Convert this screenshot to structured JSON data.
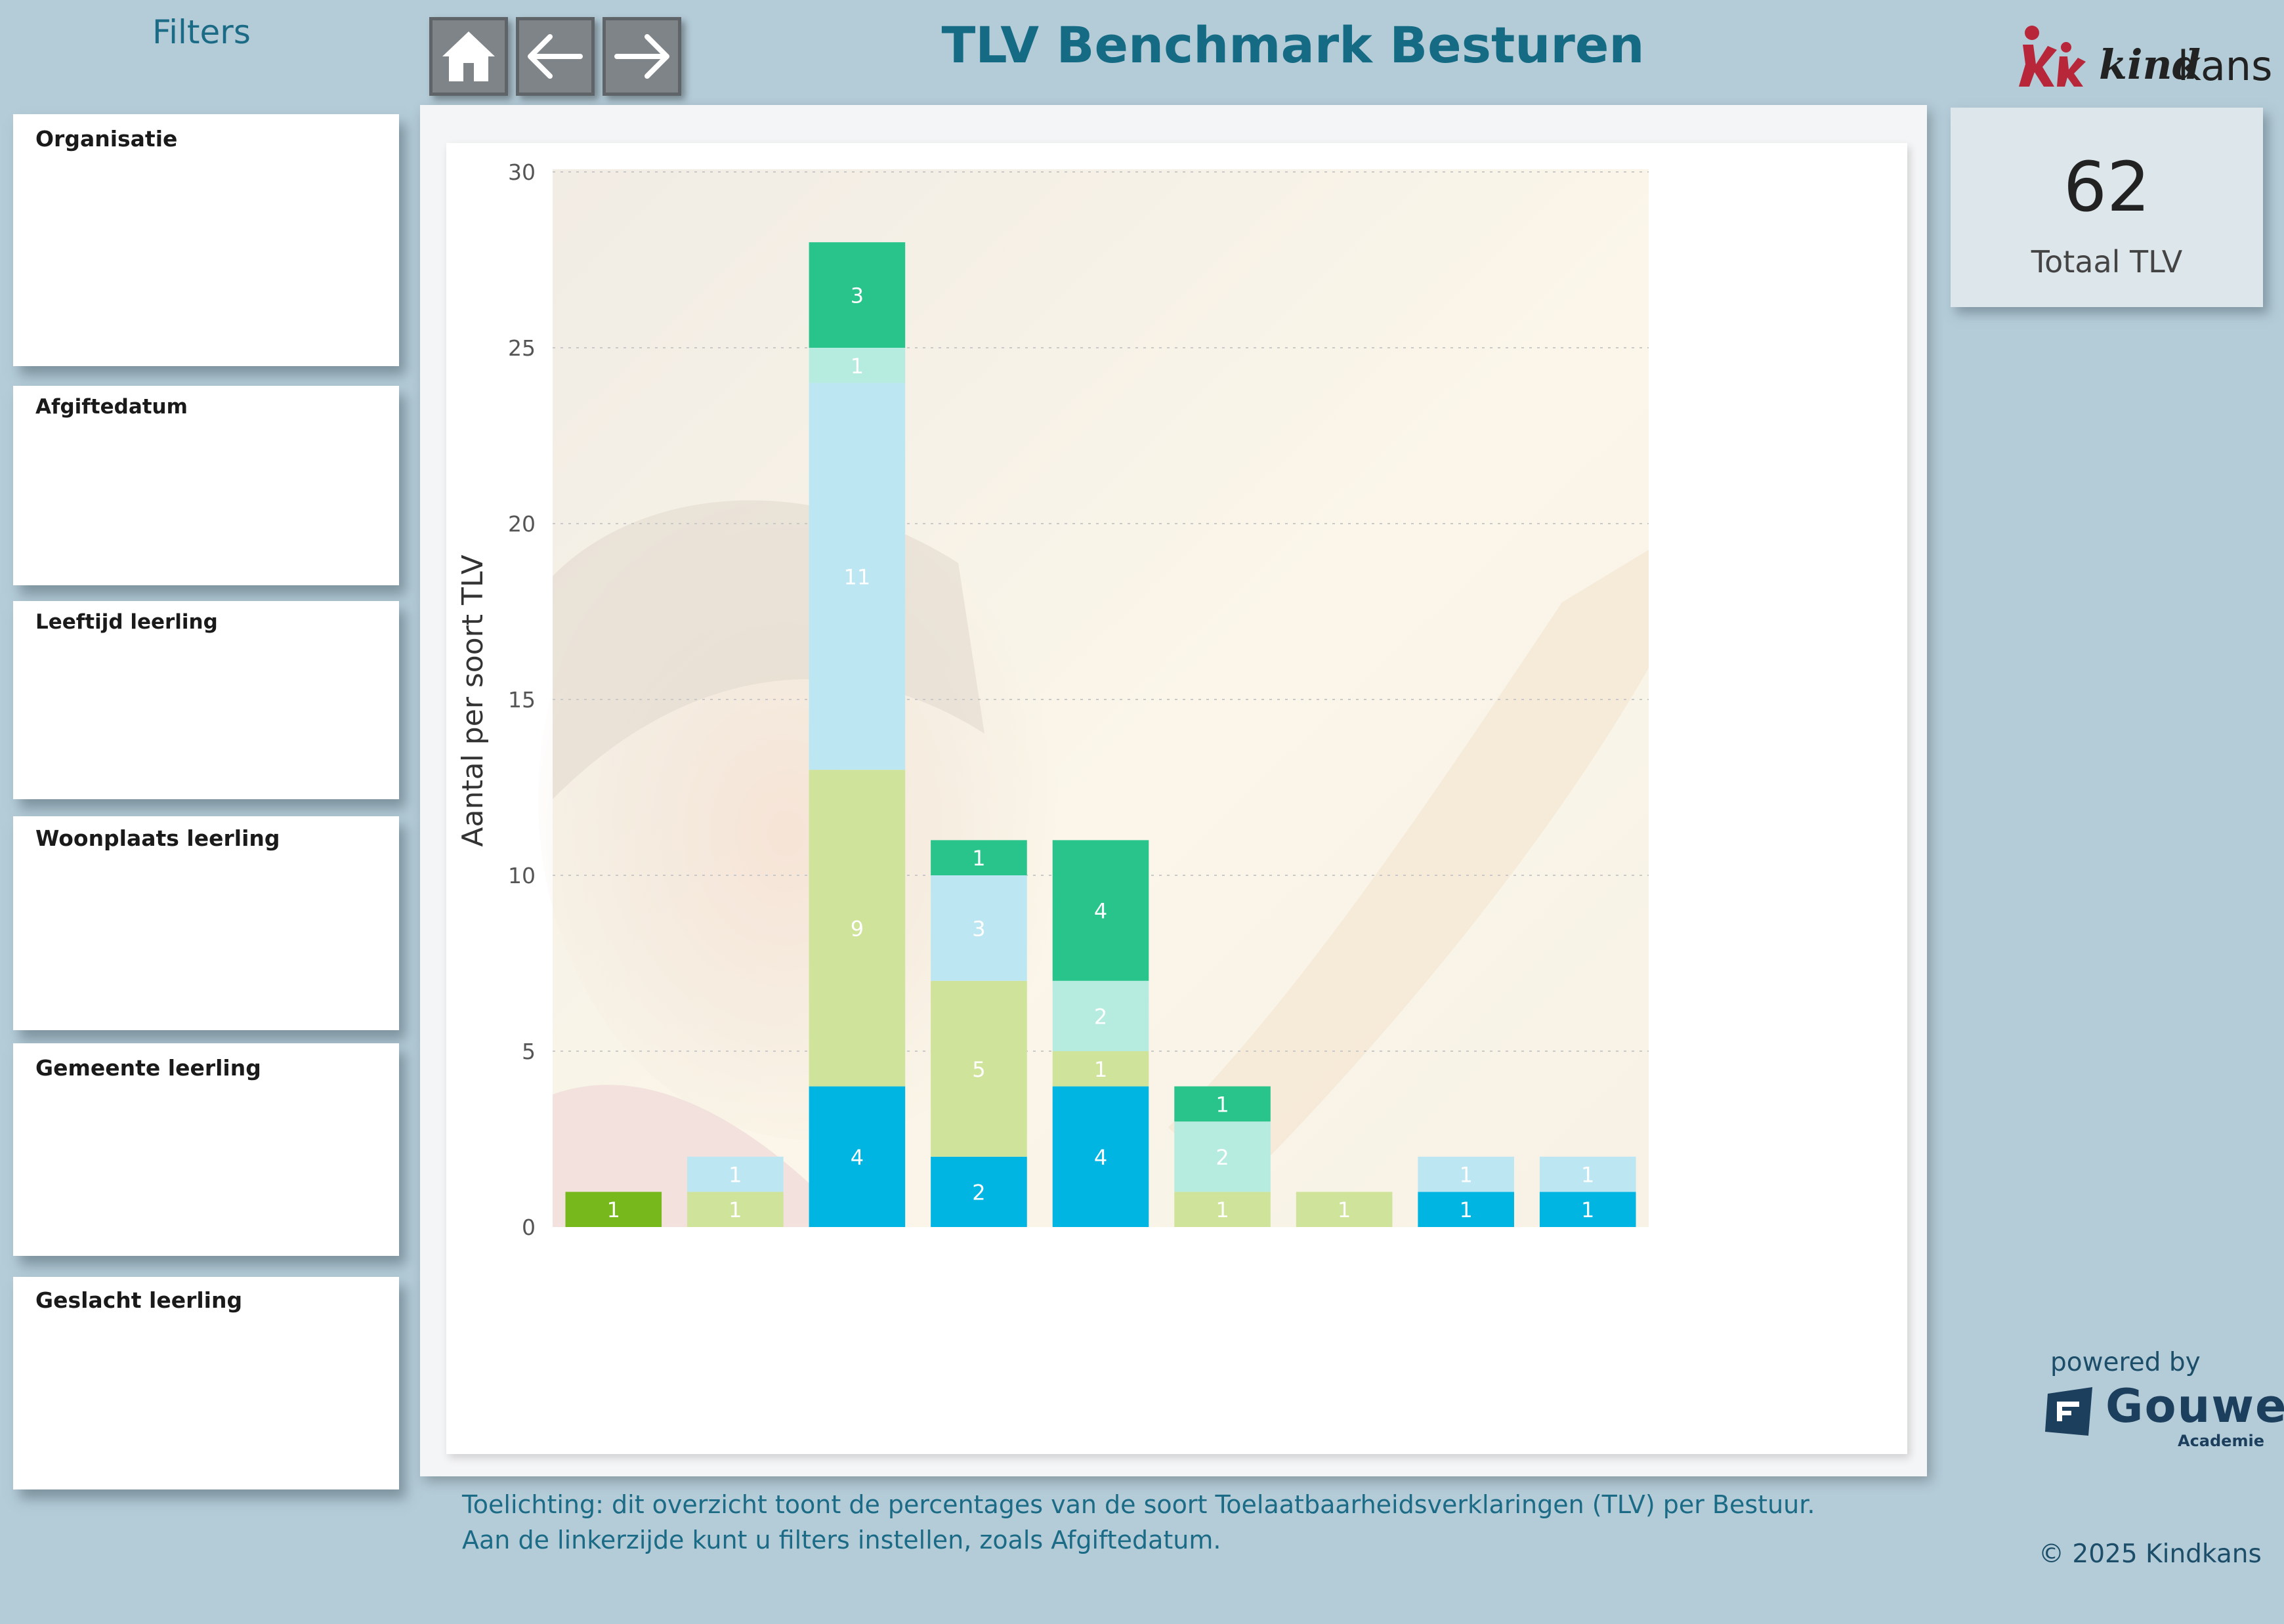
{
  "header": {
    "filters_title": "Filters",
    "page_title": "TLV Benchmark Besturen",
    "nav": {
      "home": "home-icon",
      "back": "arrow-left-icon",
      "forward": "arrow-right-icon"
    }
  },
  "logo": {
    "brand_kind": "kind",
    "brand_kans": "kans",
    "colors": {
      "figure": "#b8263a"
    }
  },
  "filters": [
    {
      "label": "Organisatie"
    },
    {
      "label": "Afgiftedatum"
    },
    {
      "label": "Leeftijd leerling"
    },
    {
      "label": "Woonplaats leerling"
    },
    {
      "label": "Gemeente leerling"
    },
    {
      "label": "Geslacht leerling"
    }
  ],
  "kpi": {
    "value": "62",
    "label": "Totaal TLV"
  },
  "chart_data": {
    "type": "bar",
    "stacked": true,
    "ylabel": "Aantal per soort TLV",
    "ylim": [
      0,
      30
    ],
    "yticks": [
      0,
      5,
      10,
      15,
      20,
      25,
      30
    ],
    "grid": true,
    "bars": [
      {
        "segments": [
          {
            "value": 1,
            "color": "#77b81c"
          }
        ]
      },
      {
        "segments": [
          {
            "value": 1,
            "color": "#cfe39a"
          },
          {
            "value": 1,
            "color": "#bde6f3"
          }
        ]
      },
      {
        "segments": [
          {
            "value": 4,
            "color": "#00b5e2"
          },
          {
            "value": 9,
            "color": "#cfe39a"
          },
          {
            "value": 11,
            "color": "#bde6f3"
          },
          {
            "value": 1,
            "color": "#b6ebdf"
          },
          {
            "value": 3,
            "color": "#28c48c"
          }
        ]
      },
      {
        "segments": [
          {
            "value": 2,
            "color": "#00b5e2"
          },
          {
            "value": 5,
            "color": "#cfe39a"
          },
          {
            "value": 3,
            "color": "#bde6f3"
          },
          {
            "value": 1,
            "color": "#28c48c"
          }
        ]
      },
      {
        "segments": [
          {
            "value": 4,
            "color": "#00b5e2"
          },
          {
            "value": 1,
            "color": "#cfe39a"
          },
          {
            "value": 2,
            "color": "#b6ebdf"
          },
          {
            "value": 4,
            "color": "#28c48c"
          }
        ]
      },
      {
        "segments": [
          {
            "value": 1,
            "color": "#cfe39a"
          },
          {
            "value": 2,
            "color": "#b6ebdf"
          },
          {
            "value": 1,
            "color": "#28c48c"
          }
        ]
      },
      {
        "segments": [
          {
            "value": 1,
            "color": "#cfe39a"
          }
        ]
      },
      {
        "segments": [
          {
            "value": 1,
            "color": "#00b5e2"
          },
          {
            "value": 1,
            "color": "#bde6f3"
          }
        ]
      },
      {
        "segments": [
          {
            "value": 1,
            "color": "#00b5e2"
          },
          {
            "value": 1,
            "color": "#bde6f3"
          }
        ]
      }
    ]
  },
  "explanation": {
    "line1": "Toelichting: dit overzicht toont de percentages van de soort Toelaatbaarheidsverklaringen (TLV) per Bestuur.",
    "line2": "Aan de linkerzijde kunt u filters instellen, zoals Afgiftedatum."
  },
  "footer": {
    "powered_by": "powered by",
    "gouwe_name": "Gouwe",
    "gouwe_sub": "Academie",
    "copyright": "© 2025 Kindkans"
  }
}
